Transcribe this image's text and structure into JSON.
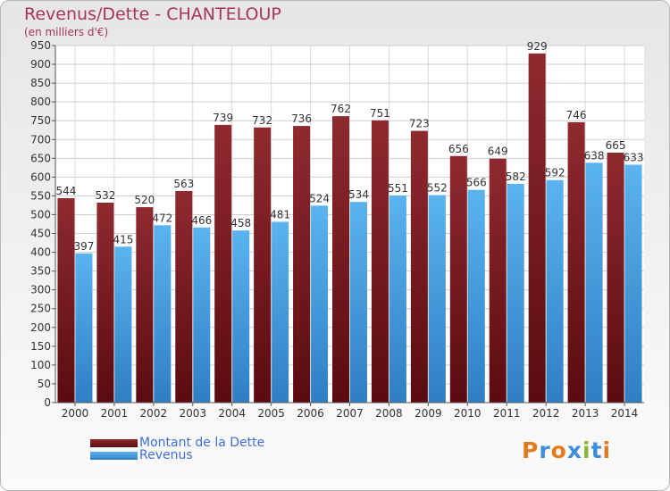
{
  "title": "Revenus/Dette - CHANTELOUP",
  "subtitle": "(en milliers d'€)",
  "colors": {
    "dette": "#7a1c22",
    "revenus": "#4aa3e6",
    "title": "#a8345a",
    "legend_text": "#3f6fd8"
  },
  "logo": {
    "text": "Proxiti",
    "icon": "proxiti-logo"
  },
  "legend": [
    {
      "label": "Montant de la Dette",
      "color": "#7a1c22"
    },
    {
      "label": "Revenus",
      "color": "#4aa3e6"
    }
  ],
  "chart_data": {
    "type": "bar",
    "title": "Revenus/Dette - CHANTELOUP",
    "subtitle": "(en milliers d'€)",
    "xlabel": "",
    "ylabel": "",
    "ylim": [
      0,
      950
    ],
    "ytick_step": 50,
    "grid": true,
    "legend_position": "bottom-left",
    "categories": [
      "2000",
      "2001",
      "2002",
      "2003",
      "2004",
      "2005",
      "2006",
      "2007",
      "2008",
      "2009",
      "2010",
      "2011",
      "2012",
      "2013",
      "2014"
    ],
    "series": [
      {
        "name": "Montant de la Dette",
        "values": [
          544,
          532,
          520,
          563,
          739,
          732,
          736,
          762,
          751,
          723,
          656,
          649,
          929,
          746,
          665
        ]
      },
      {
        "name": "Revenus",
        "values": [
          397,
          415,
          472,
          466,
          458,
          481,
          524,
          534,
          551,
          552,
          566,
          582,
          592,
          638,
          633
        ]
      }
    ]
  }
}
